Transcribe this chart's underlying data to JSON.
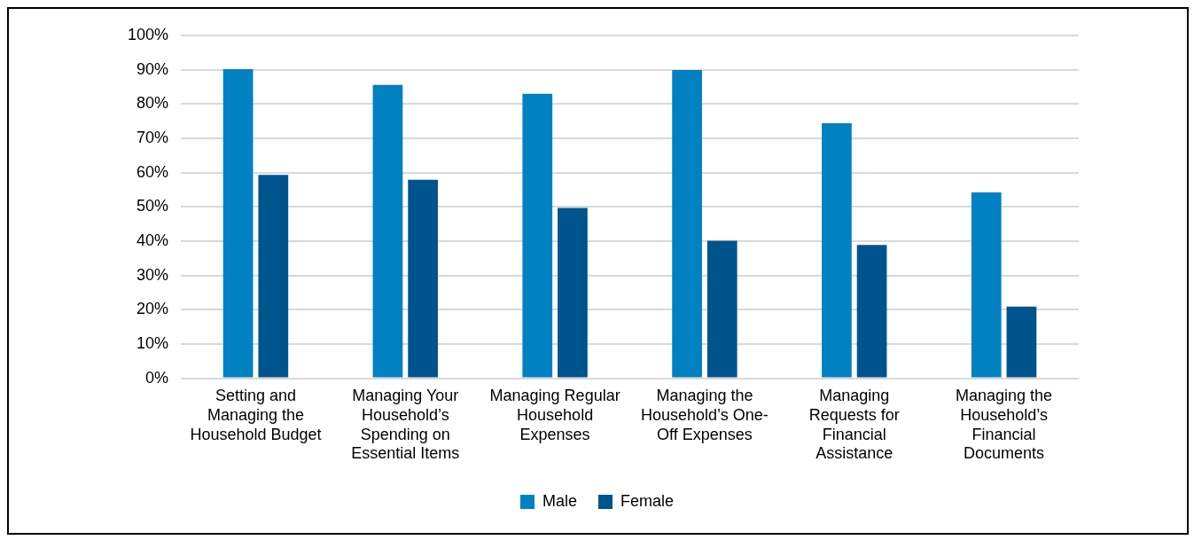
{
  "chart_data": {
    "type": "bar",
    "categories": [
      "Setting and Managing the Household Budget",
      "Managing Your Household’s Spending on Essential Items",
      "Managing Regular Household Expenses",
      "Managing the Household’s One-Off Expenses",
      "Managing Requests for Financial Assistance",
      "Managing the Household’s Financial Documents"
    ],
    "series": [
      {
        "name": "Male",
        "color": "#0081c1",
        "values": [
          90.2,
          85.6,
          83.0,
          89.9,
          74.4,
          54.2
        ]
      },
      {
        "name": "Female",
        "color": "#00548d",
        "values": [
          59.3,
          57.9,
          49.7,
          40.1,
          38.9,
          20.9
        ]
      }
    ],
    "ylim": [
      0,
      100
    ],
    "yticks": [
      {
        "value": 0,
        "label": "0%"
      },
      {
        "value": 10,
        "label": "10%"
      },
      {
        "value": 20,
        "label": "20%"
      },
      {
        "value": 30,
        "label": "30%"
      },
      {
        "value": 40,
        "label": "40%"
      },
      {
        "value": 50,
        "label": "50%"
      },
      {
        "value": 60,
        "label": "60%"
      },
      {
        "value": 70,
        "label": "70%"
      },
      {
        "value": 80,
        "label": "80%"
      },
      {
        "value": 90,
        "label": "90%"
      },
      {
        "value": 100,
        "label": "100%"
      }
    ],
    "grid": "y",
    "legend": "bottom"
  }
}
